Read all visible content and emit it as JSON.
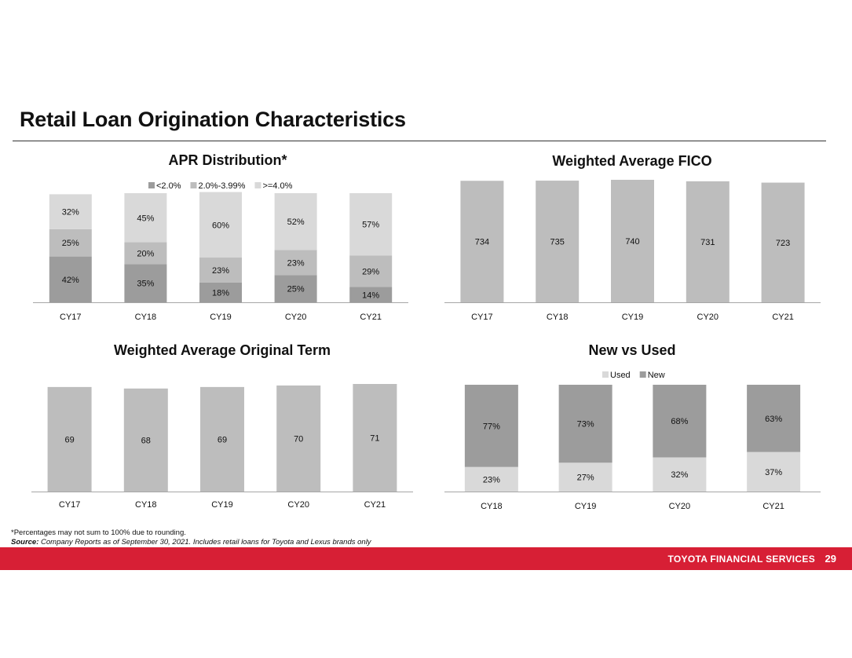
{
  "page": {
    "title": "Retail Loan Origination Characteristics",
    "footnote_1": "*Percentages may not sum to 100% due to rounding.",
    "footnote_2_label": "Source:",
    "footnote_2_text": "Company Reports as of September 30, 2021. Includes retail loans for Toyota and Lexus brands only",
    "footer_brand": "TOYOTA FINANCIAL SERVICES",
    "page_number": "29"
  },
  "colors": {
    "dark_gray": "#9c9c9c",
    "mid_gray": "#bdbdbd",
    "light_gray": "#d9d9d9",
    "brand_red": "#d71f35"
  },
  "chart_data": [
    {
      "id": "apr",
      "type": "bar",
      "stacked": true,
      "title": "APR Distribution*",
      "categories": [
        "CY17",
        "CY18",
        "CY19",
        "CY20",
        "CY21"
      ],
      "series": [
        {
          "name": "<2.0%",
          "values": [
            42,
            35,
            18,
            25,
            14
          ],
          "color": "#9c9c9c"
        },
        {
          "name": "2.0%-3.99%",
          "values": [
            25,
            20,
            23,
            23,
            29
          ],
          "color": "#bdbdbd"
        },
        {
          "name": ">=4.0%",
          "values": [
            32,
            45,
            60,
            52,
            57
          ],
          "color": "#d9d9d9"
        }
      ],
      "ylim": [
        0,
        100
      ],
      "legend": "top"
    },
    {
      "id": "fico",
      "type": "bar",
      "title": "Weighted Average FICO",
      "categories": [
        "CY17",
        "CY18",
        "CY19",
        "CY20",
        "CY21"
      ],
      "values": [
        734,
        735,
        740,
        731,
        723
      ],
      "ylim": [
        0,
        740
      ]
    },
    {
      "id": "term",
      "type": "bar",
      "title": "Weighted Average Original Term",
      "categories": [
        "CY17",
        "CY18",
        "CY19",
        "CY20",
        "CY21"
      ],
      "values": [
        69,
        68,
        69,
        70,
        71
      ],
      "ylim": [
        0,
        71
      ]
    },
    {
      "id": "newused",
      "type": "bar",
      "stacked": true,
      "title": "New vs Used",
      "categories": [
        "CY18",
        "CY19",
        "CY20",
        "CY21"
      ],
      "series": [
        {
          "name": "Used",
          "values": [
            23,
            27,
            32,
            37
          ],
          "color": "#d9d9d9"
        },
        {
          "name": "New",
          "values": [
            77,
            73,
            68,
            63
          ],
          "color": "#9c9c9c"
        }
      ],
      "ylim": [
        0,
        100
      ],
      "legend": "top"
    }
  ]
}
